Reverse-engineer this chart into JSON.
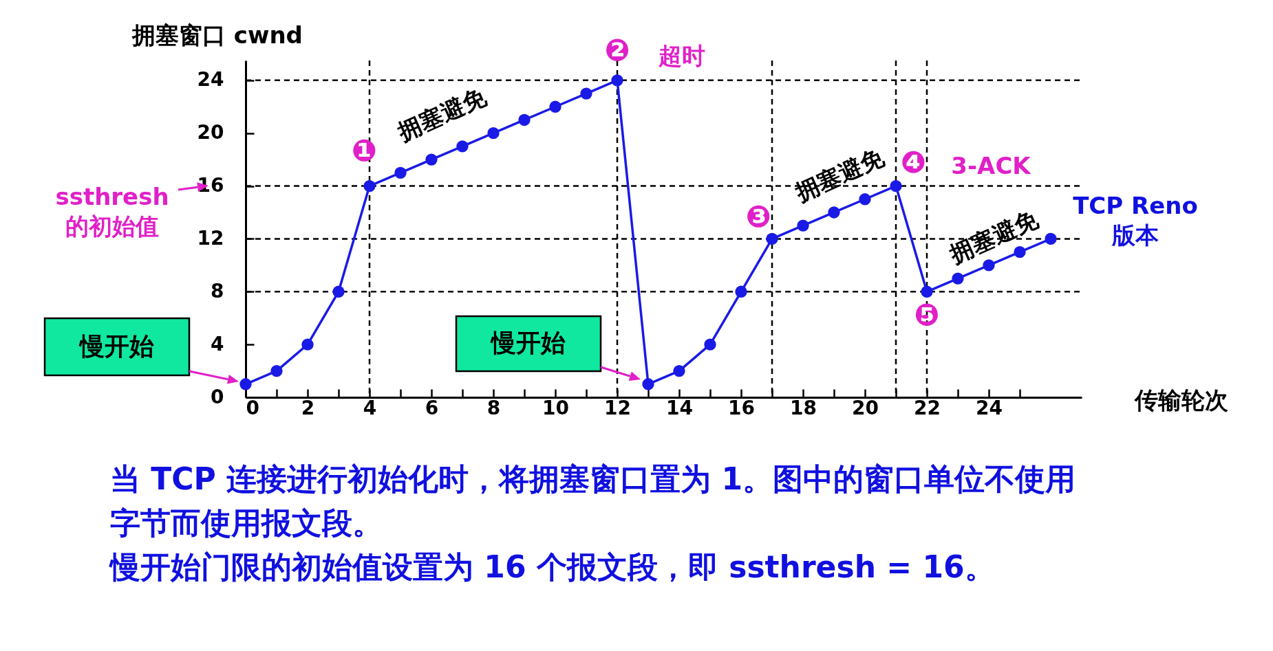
{
  "chart_data": {
    "type": "line",
    "xlabel": "传输轮次",
    "ylabel": "拥塞窗口  cwnd",
    "x": [
      0,
      1,
      2,
      3,
      4,
      5,
      6,
      7,
      8,
      9,
      10,
      11,
      12,
      13,
      14,
      15,
      16,
      17,
      18,
      19,
      20,
      21,
      22,
      23,
      24,
      25,
      26
    ],
    "series": [
      {
        "color": "#1a1ae6",
        "values": [
          1,
          2,
          4,
          8,
          16,
          17,
          18,
          19,
          20,
          21,
          22,
          23,
          24,
          1,
          2,
          4,
          8,
          12,
          13,
          14,
          15,
          16,
          8,
          9,
          10,
          11,
          12
        ]
      }
    ],
    "xlim": [
      0,
      27
    ],
    "ylim": [
      0,
      25.5
    ],
    "xticks": [
      0,
      {
        "value": 1,
        "label": null
      },
      2,
      {
        "value": 3,
        "label": null
      },
      4,
      {
        "value": 5,
        "label": null
      },
      6,
      {
        "value": 7,
        "label": null
      },
      8,
      {
        "value": 9,
        "label": null
      },
      10,
      {
        "value": 11,
        "label": null
      },
      12,
      {
        "value": 13,
        "label": null
      },
      14,
      {
        "value": 15,
        "label": null
      },
      16,
      {
        "value": 17,
        "label": null
      },
      18,
      {
        "value": 19,
        "label": null
      },
      20,
      {
        "value": 21,
        "label": null
      },
      22,
      {
        "value": 23,
        "label": null
      },
      24,
      {
        "value": 25,
        "label": null
      }
    ],
    "yticks": [
      0,
      4,
      8,
      12,
      16,
      20,
      24
    ],
    "marker": "circle",
    "line_style": "solid",
    "grid": false,
    "ref_lines": [
      {
        "axis": "y",
        "value": 24,
        "label": null,
        "line_style": "dashed"
      },
      {
        "axis": "y",
        "value": 16,
        "label": null,
        "line_style": "dashed"
      },
      {
        "axis": "y",
        "value": 12,
        "label": null,
        "line_style": "dashed"
      },
      {
        "axis": "y",
        "value": 8,
        "label": null,
        "line_style": "dashed"
      },
      {
        "axis": "x",
        "value": 4,
        "label": null,
        "line_style": "dashed"
      },
      {
        "axis": "x",
        "value": 12,
        "label": null,
        "line_style": "dashed"
      },
      {
        "axis": "x",
        "value": 17,
        "label": null,
        "line_style": "dashed"
      },
      {
        "axis": "x",
        "value": 21,
        "label": null,
        "line_style": "dashed"
      },
      {
        "axis": "x",
        "value": 22,
        "label": null,
        "line_style": "dashed"
      }
    ],
    "annotations": [
      {
        "text": "❶",
        "x": 4,
        "y": 16
      },
      {
        "text": "❷",
        "x": 12,
        "y": 24
      },
      "超时",
      {
        "text": "❸",
        "x": 17,
        "y": 12
      },
      {
        "text": "❹",
        "x": 21,
        "y": 16
      },
      "3-ACK",
      {
        "text": "❺",
        "x": 22,
        "y": 8
      },
      "拥塞避免",
      "拥塞避免",
      "拥塞避免",
      "慢开始",
      "慢开始",
      "ssthresh 的初始值",
      "TCP Reno 版本",
      "当 TCP 连接进行初始化时，将拥塞窗口置为 1。图中的窗口单位不使用字节而使用报文段。",
      "慢开始门限的初始值设置为 16 个报文段，即 ssthresh = 16。"
    ]
  }
}
